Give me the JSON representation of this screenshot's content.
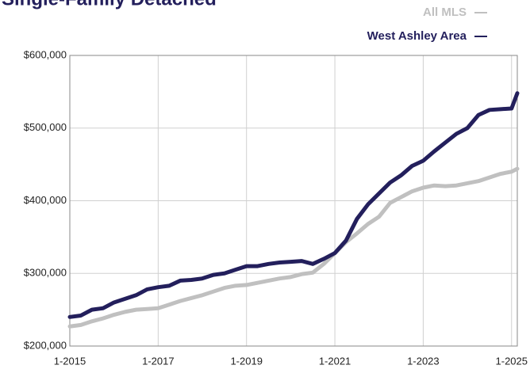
{
  "chart_data": {
    "type": "line",
    "title": "Single-Family Detached",
    "x": [
      2015,
      2015.25,
      2015.5,
      2015.75,
      2016,
      2016.25,
      2016.5,
      2016.75,
      2017,
      2017.25,
      2017.5,
      2017.75,
      2018,
      2018.25,
      2018.5,
      2018.75,
      2019,
      2019.25,
      2019.5,
      2019.75,
      2020,
      2020.25,
      2020.5,
      2020.75,
      2021,
      2021.25,
      2021.5,
      2021.75,
      2022,
      2022.25,
      2022.5,
      2022.75,
      2023,
      2023.25,
      2023.5,
      2023.75,
      2024,
      2024.25,
      2024.5,
      2024.75,
      2025,
      2025.13
    ],
    "series": [
      {
        "name": "All MLS",
        "color": "#c0c0c0",
        "values": [
          227000,
          229000,
          234000,
          238000,
          243000,
          247000,
          250000,
          251000,
          252000,
          257000,
          262000,
          266000,
          270000,
          275000,
          280000,
          283000,
          284000,
          287000,
          290000,
          293000,
          295000,
          299000,
          301000,
          313000,
          328000,
          343000,
          355000,
          368000,
          378000,
          397000,
          405000,
          413000,
          418000,
          421000,
          420000,
          421000,
          424000,
          427000,
          432000,
          437000,
          440000,
          444000
        ]
      },
      {
        "name": "West Ashley Area",
        "color": "#231f5c",
        "values": [
          240000,
          242000,
          250000,
          252000,
          260000,
          265000,
          270000,
          278000,
          281000,
          283000,
          290000,
          291000,
          293000,
          298000,
          300000,
          305000,
          310000,
          310000,
          313000,
          315000,
          316000,
          317000,
          313000,
          320000,
          328000,
          345000,
          375000,
          395000,
          410000,
          425000,
          435000,
          448000,
          455000,
          468000,
          480000,
          492000,
          500000,
          518000,
          525000,
          526000,
          527000,
          548000
        ]
      }
    ],
    "xlim": [
      2015,
      2025.13
    ],
    "xticks": [
      {
        "value": 2015,
        "label": "1-2015"
      },
      {
        "value": 2017,
        "label": "1-2017"
      },
      {
        "value": 2019,
        "label": "1-2019"
      },
      {
        "value": 2021,
        "label": "1-2021"
      },
      {
        "value": 2023,
        "label": "1-2023"
      },
      {
        "value": 2025,
        "label": "1-2025"
      }
    ],
    "ylim": [
      200000,
      600000
    ],
    "yticks": [
      {
        "value": 200000,
        "label": "$200,000"
      },
      {
        "value": 300000,
        "label": "$300,000"
      },
      {
        "value": 400000,
        "label": "$400,000"
      },
      {
        "value": 500000,
        "label": "$500,000"
      },
      {
        "value": 600000,
        "label": "$600,000"
      }
    ],
    "grid": true
  }
}
